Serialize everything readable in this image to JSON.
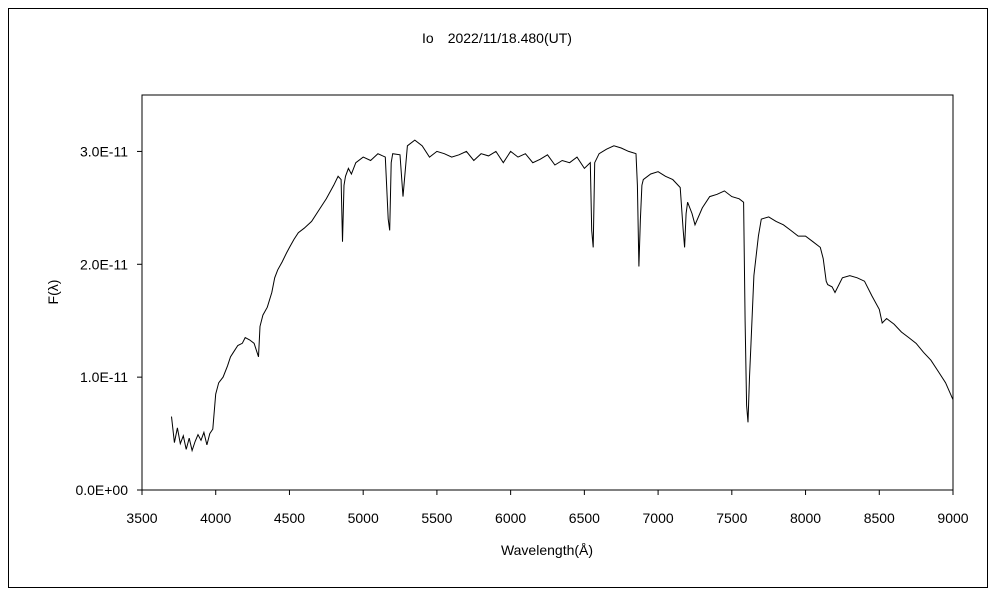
{
  "chart_data": {
    "type": "line",
    "title": "Io　2022/11/18.480(UT)",
    "xlabel": "Wavelength(Å)",
    "ylabel": "F(λ)",
    "xlim": [
      3500,
      9000
    ],
    "ylim": [
      0,
      3.5e-11
    ],
    "xticks": [
      3500,
      4000,
      4500,
      5000,
      5500,
      6000,
      6500,
      7000,
      7500,
      8000,
      8500,
      9000
    ],
    "xtick_labels": [
      "3500",
      "4000",
      "4500",
      "5000",
      "5500",
      "6000",
      "6500",
      "7000",
      "7500",
      "8000",
      "8500",
      "9000"
    ],
    "yticks": [
      0,
      1e-11,
      2e-11,
      3e-11
    ],
    "ytick_labels": [
      "0.0E+00",
      "1.0E-11",
      "2.0E-11",
      "3.0E-11"
    ],
    "grid": false,
    "legend": "none",
    "line_color": "#000000",
    "series": [
      {
        "x": [
          3700,
          3720,
          3740,
          3760,
          3780,
          3800,
          3820,
          3840,
          3860,
          3880,
          3900,
          3920,
          3940,
          3960,
          3980,
          4000,
          4020,
          4050,
          4080,
          4100,
          4120,
          4150,
          4180,
          4200,
          4230,
          4260,
          4290,
          4300,
          4320,
          4350,
          4380,
          4400,
          4420,
          4450,
          4480,
          4500,
          4530,
          4560,
          4600,
          4650,
          4700,
          4750,
          4800,
          4830,
          4850,
          4860,
          4870,
          4880,
          4900,
          4920,
          4950,
          5000,
          5050,
          5100,
          5150,
          5170,
          5180,
          5190,
          5200,
          5250,
          5270,
          5300,
          5350,
          5400,
          5450,
          5500,
          5550,
          5600,
          5650,
          5700,
          5750,
          5800,
          5850,
          5900,
          5950,
          6000,
          6050,
          6100,
          6150,
          6200,
          6250,
          6300,
          6350,
          6400,
          6450,
          6500,
          6540,
          6550,
          6560,
          6570,
          6600,
          6650,
          6700,
          6750,
          6800,
          6850,
          6860,
          6870,
          6880,
          6890,
          6900,
          6950,
          7000,
          7050,
          7100,
          7150,
          7170,
          7180,
          7190,
          7200,
          7230,
          7250,
          7300,
          7350,
          7400,
          7450,
          7500,
          7550,
          7580,
          7590,
          7600,
          7610,
          7620,
          7630,
          7650,
          7680,
          7700,
          7750,
          7800,
          7850,
          7900,
          7950,
          8000,
          8050,
          8100,
          8120,
          8140,
          8150,
          8180,
          8200,
          8250,
          8300,
          8350,
          8400,
          8450,
          8500,
          8520,
          8550,
          8600,
          8650,
          8700,
          8750,
          8800,
          8850,
          8900,
          8950,
          9000
        ],
        "y": [
          6.5e-12,
          4.2e-12,
          5.5e-12,
          4.1e-12,
          4.8e-12,
          3.6e-12,
          4.6e-12,
          3.5e-12,
          4.3e-12,
          4.9e-12,
          4.4e-12,
          5.1e-12,
          4e-12,
          5e-12,
          5.4e-12,
          8.5e-12,
          9.5e-12,
          1e-11,
          1.1e-11,
          1.18e-11,
          1.22e-11,
          1.28e-11,
          1.3e-11,
          1.35e-11,
          1.33e-11,
          1.3e-11,
          1.18e-11,
          1.45e-11,
          1.55e-11,
          1.62e-11,
          1.75e-11,
          1.88e-11,
          1.95e-11,
          2.02e-11,
          2.1e-11,
          2.15e-11,
          2.22e-11,
          2.28e-11,
          2.32e-11,
          2.38e-11,
          2.48e-11,
          2.58e-11,
          2.7e-11,
          2.78e-11,
          2.75e-11,
          2.2e-11,
          2.7e-11,
          2.78e-11,
          2.85e-11,
          2.8e-11,
          2.9e-11,
          2.95e-11,
          2.92e-11,
          2.98e-11,
          2.95e-11,
          2.4e-11,
          2.3e-11,
          2.9e-11,
          2.98e-11,
          2.97e-11,
          2.6e-11,
          3.05e-11,
          3.1e-11,
          3.05e-11,
          2.95e-11,
          3e-11,
          2.98e-11,
          2.95e-11,
          2.97e-11,
          3e-11,
          2.92e-11,
          2.98e-11,
          2.96e-11,
          3e-11,
          2.9e-11,
          3e-11,
          2.95e-11,
          2.98e-11,
          2.9e-11,
          2.93e-11,
          2.97e-11,
          2.88e-11,
          2.92e-11,
          2.9e-11,
          2.95e-11,
          2.85e-11,
          2.9e-11,
          2.3e-11,
          2.15e-11,
          2.9e-11,
          2.98e-11,
          3.02e-11,
          3.05e-11,
          3.03e-11,
          3e-11,
          2.98e-11,
          2.7e-11,
          1.98e-11,
          2.4e-11,
          2.7e-11,
          2.75e-11,
          2.8e-11,
          2.82e-11,
          2.78e-11,
          2.75e-11,
          2.68e-11,
          2.3e-11,
          2.15e-11,
          2.45e-11,
          2.55e-11,
          2.45e-11,
          2.35e-11,
          2.5e-11,
          2.6e-11,
          2.62e-11,
          2.65e-11,
          2.6e-11,
          2.58e-11,
          2.55e-11,
          1.5e-11,
          7.5e-12,
          6e-12,
          1e-11,
          1.3e-11,
          1.9e-11,
          2.25e-11,
          2.4e-11,
          2.42e-11,
          2.38e-11,
          2.35e-11,
          2.3e-11,
          2.25e-11,
          2.25e-11,
          2.2e-11,
          2.15e-11,
          2.05e-11,
          1.85e-11,
          1.82e-11,
          1.8e-11,
          1.75e-11,
          1.88e-11,
          1.9e-11,
          1.88e-11,
          1.85e-11,
          1.72e-11,
          1.6e-11,
          1.48e-11,
          1.52e-11,
          1.47e-11,
          1.4e-11,
          1.35e-11,
          1.3e-11,
          1.22e-11,
          1.15e-11,
          1.05e-11,
          9.5e-12,
          8e-12
        ]
      }
    ]
  }
}
